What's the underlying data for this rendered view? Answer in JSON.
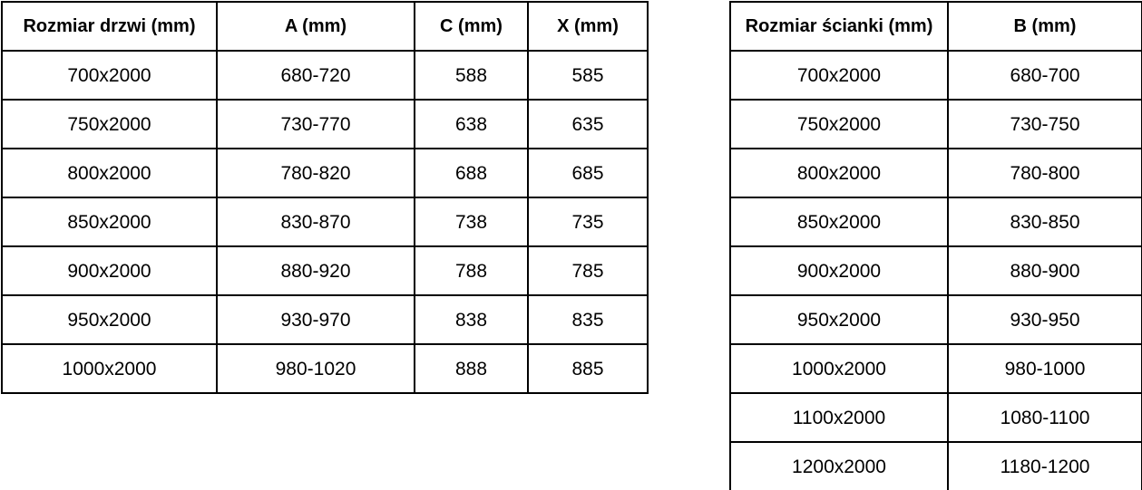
{
  "colors": {
    "border": "#000000",
    "background": "#ffffff",
    "text": "#000000"
  },
  "tables": [
    {
      "name": "door-size-table",
      "headers": [
        "Rozmiar drzwi (mm)",
        "A (mm)",
        "C (mm)",
        "X (mm)"
      ],
      "rows": [
        [
          "700x2000",
          "680-720",
          "588",
          "585"
        ],
        [
          "750x2000",
          "730-770",
          "638",
          "635"
        ],
        [
          "800x2000",
          "780-820",
          "688",
          "685"
        ],
        [
          "850x2000",
          "830-870",
          "738",
          "735"
        ],
        [
          "900x2000",
          "880-920",
          "788",
          "785"
        ],
        [
          "950x2000",
          "930-970",
          "838",
          "835"
        ],
        [
          "1000x2000",
          "980-1020",
          "888",
          "885"
        ]
      ]
    },
    {
      "name": "wall-size-table",
      "headers": [
        "Rozmiar ścianki (mm)",
        "B (mm)"
      ],
      "rows": [
        [
          "700x2000",
          "680-700"
        ],
        [
          "750x2000",
          "730-750"
        ],
        [
          "800x2000",
          "780-800"
        ],
        [
          "850x2000",
          "830-850"
        ],
        [
          "900x2000",
          "880-900"
        ],
        [
          "950x2000",
          "930-950"
        ],
        [
          "1000x2000",
          "980-1000"
        ],
        [
          "1100x2000",
          "1080-1100"
        ],
        [
          "1200x2000",
          "1180-1200"
        ]
      ]
    }
  ]
}
